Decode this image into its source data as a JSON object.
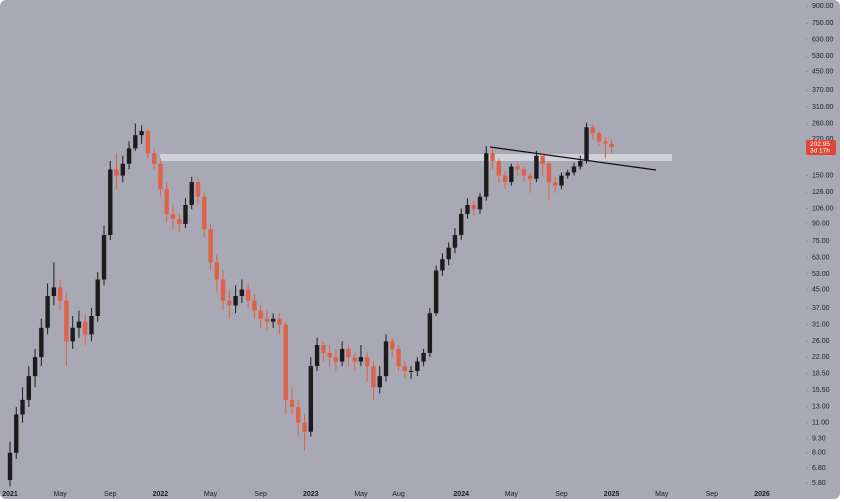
{
  "chart_data": {
    "type": "candlestick",
    "categories": [
      "2021",
      null,
      null,
      null,
      null,
      null,
      null,
      null,
      "May",
      null,
      null,
      null,
      null,
      null,
      null,
      null,
      "Sep",
      null,
      null,
      null,
      null,
      null,
      null,
      null,
      "2022",
      null,
      null,
      null,
      null,
      null,
      null,
      null,
      "May",
      null,
      null,
      null,
      null,
      null,
      null,
      null,
      "Sep",
      null,
      null,
      null,
      null,
      null,
      null,
      null,
      "2023",
      null,
      null,
      null,
      null,
      null,
      null,
      null,
      "May",
      null,
      null,
      null,
      null,
      null,
      "Aug",
      null,
      null,
      null,
      null,
      null,
      null,
      null,
      null,
      null,
      "2024",
      null,
      null,
      null,
      null,
      null,
      null,
      null,
      "May",
      null,
      null,
      null,
      null,
      null,
      null,
      null,
      "Sep",
      null,
      null,
      null,
      null,
      null,
      null,
      null,
      "2025",
      null,
      null,
      null,
      null,
      null,
      null,
      null,
      "May",
      null,
      null,
      null,
      null,
      null,
      null,
      null,
      "Sep",
      null,
      null,
      null,
      null,
      null,
      null,
      null,
      "2026"
    ],
    "open": [
      6,
      8,
      12,
      14,
      18,
      22,
      30,
      42,
      46,
      40,
      26,
      30,
      32,
      28,
      34,
      50,
      80,
      160,
      150,
      170,
      200,
      230,
      240,
      190,
      170,
      130,
      100,
      95,
      90,
      110,
      140,
      120,
      85,
      60,
      50,
      40,
      38,
      42,
      45,
      40,
      36,
      33,
      32,
      33,
      31,
      14,
      13,
      11,
      10,
      20,
      25,
      23,
      22,
      21,
      24,
      22,
      21,
      22,
      20,
      16,
      18,
      26,
      24,
      20,
      19,
      19,
      21,
      23,
      35,
      55,
      62,
      70,
      80,
      100,
      110,
      105,
      120,
      190,
      175,
      150,
      140,
      165,
      160,
      150,
      145,
      185,
      170,
      140,
      135,
      150,
      155,
      165,
      175,
      250,
      235,
      215,
      210,
      null,
      null,
      null,
      null,
      null,
      null,
      null,
      null,
      null,
      null,
      null,
      null,
      null,
      null,
      null,
      null,
      null,
      null,
      null,
      null,
      null,
      null,
      null,
      null
    ],
    "high": [
      9,
      13,
      16,
      20,
      24,
      33,
      48,
      60,
      50,
      44,
      34,
      36,
      35,
      37,
      54,
      88,
      175,
      190,
      185,
      215,
      260,
      255,
      245,
      200,
      180,
      140,
      110,
      100,
      118,
      148,
      145,
      125,
      90,
      65,
      55,
      45,
      47,
      50,
      48,
      43,
      38,
      36,
      35,
      35,
      32,
      16,
      14,
      12,
      22,
      27,
      26,
      25,
      24,
      26,
      25,
      23,
      25,
      23,
      21,
      20,
      28,
      27,
      25,
      21,
      20,
      22,
      24,
      37,
      58,
      66,
      74,
      86,
      106,
      118,
      115,
      125,
      205,
      200,
      180,
      158,
      170,
      172,
      165,
      155,
      195,
      190,
      175,
      148,
      155,
      160,
      172,
      185,
      262,
      258,
      240,
      225,
      220,
      null,
      null,
      null,
      null,
      null,
      null,
      null,
      null,
      null,
      null,
      null,
      null,
      null,
      null,
      null,
      null,
      null,
      null,
      null,
      null,
      null,
      null,
      null,
      null
    ],
    "low": [
      5.6,
      7.5,
      11,
      13,
      16,
      20,
      28,
      38,
      36,
      20,
      24,
      27,
      25,
      26,
      32,
      47,
      76,
      130,
      140,
      160,
      195,
      210,
      180,
      160,
      120,
      92,
      85,
      82,
      86,
      105,
      110,
      78,
      55,
      44,
      36,
      33,
      35,
      39,
      37,
      33,
      30,
      29,
      30,
      28,
      12,
      12,
      9.5,
      8.2,
      9.5,
      19,
      21,
      20,
      19,
      20,
      20,
      19,
      20,
      17,
      14,
      15,
      17,
      22,
      19,
      17.5,
      17.5,
      18,
      20,
      22,
      34,
      52,
      58,
      66,
      76,
      95,
      98,
      100,
      115,
      160,
      140,
      130,
      135,
      150,
      140,
      125,
      140,
      150,
      115,
      125,
      130,
      145,
      150,
      160,
      170,
      220,
      205,
      180,
      190,
      null,
      null,
      null,
      null,
      null,
      null,
      null,
      null,
      null,
      null,
      null,
      null,
      null,
      null,
      null,
      null,
      null,
      null,
      null,
      null,
      null,
      null,
      null,
      null
    ],
    "close": [
      8,
      12,
      14,
      18,
      22,
      30,
      42,
      46,
      40,
      26,
      30,
      32,
      28,
      34,
      50,
      80,
      160,
      150,
      170,
      200,
      230,
      240,
      190,
      170,
      130,
      100,
      95,
      90,
      110,
      140,
      120,
      85,
      60,
      50,
      40,
      38,
      42,
      45,
      40,
      36,
      33,
      32,
      33,
      31,
      14,
      13,
      11,
      10,
      20,
      25,
      23,
      22,
      21,
      24,
      22,
      21,
      22,
      20,
      16,
      18,
      26,
      24,
      20,
      19,
      19,
      21,
      23,
      35,
      55,
      62,
      70,
      80,
      100,
      110,
      105,
      120,
      190,
      175,
      150,
      140,
      165,
      160,
      150,
      145,
      185,
      170,
      140,
      135,
      150,
      155,
      165,
      175,
      250,
      235,
      215,
      210,
      203,
      null,
      null,
      null,
      null,
      null,
      null,
      null,
      null,
      null,
      null,
      null,
      null,
      null,
      null,
      null,
      null,
      null,
      null,
      null,
      null,
      null,
      null,
      null,
      null
    ],
    "up_color": "#1c1c1f",
    "down_color": "#e0614a",
    "log_scale": true,
    "ylim": [
      5.4,
      960
    ],
    "yticks": [
      {
        "value": 900,
        "label": "900.00"
      },
      {
        "value": 750,
        "label": "750.00"
      },
      {
        "value": 630,
        "label": "630.00"
      },
      {
        "value": 530,
        "label": "530.00"
      },
      {
        "value": 450,
        "label": "450.00"
      },
      {
        "value": 370,
        "label": "370.00"
      },
      {
        "value": 310,
        "label": "310.00"
      },
      {
        "value": 260,
        "label": "260.00"
      },
      {
        "value": 220,
        "label": "220.00"
      },
      {
        "value": 190,
        "label": "190.00"
      },
      {
        "value": 150,
        "label": "150.00"
      },
      {
        "value": 126,
        "label": "126.00"
      },
      {
        "value": 106,
        "label": "106.00"
      },
      {
        "value": 90,
        "label": "90.00"
      },
      {
        "value": 75,
        "label": "75.00"
      },
      {
        "value": 63,
        "label": "63.00"
      },
      {
        "value": 53,
        "label": "53.00"
      },
      {
        "value": 45,
        "label": "45.00"
      },
      {
        "value": 37,
        "label": "37.00"
      },
      {
        "value": 31,
        "label": "31.00"
      },
      {
        "value": 26,
        "label": "26.00"
      },
      {
        "value": 22,
        "label": "22.00"
      },
      {
        "value": 18.5,
        "label": "18.50"
      },
      {
        "value": 15.5,
        "label": "15.50"
      },
      {
        "value": 13,
        "label": "13.00"
      },
      {
        "value": 11,
        "label": "11.00"
      },
      {
        "value": 9.3,
        "label": "9.30"
      },
      {
        "value": 8,
        "label": "8.00"
      },
      {
        "value": 6.8,
        "label": "6.80"
      },
      {
        "value": 5.8,
        "label": "5.80"
      }
    ],
    "last_price": {
      "value": 202.95,
      "label": "202.95"
    },
    "countdown": "3d 17h"
  }
}
